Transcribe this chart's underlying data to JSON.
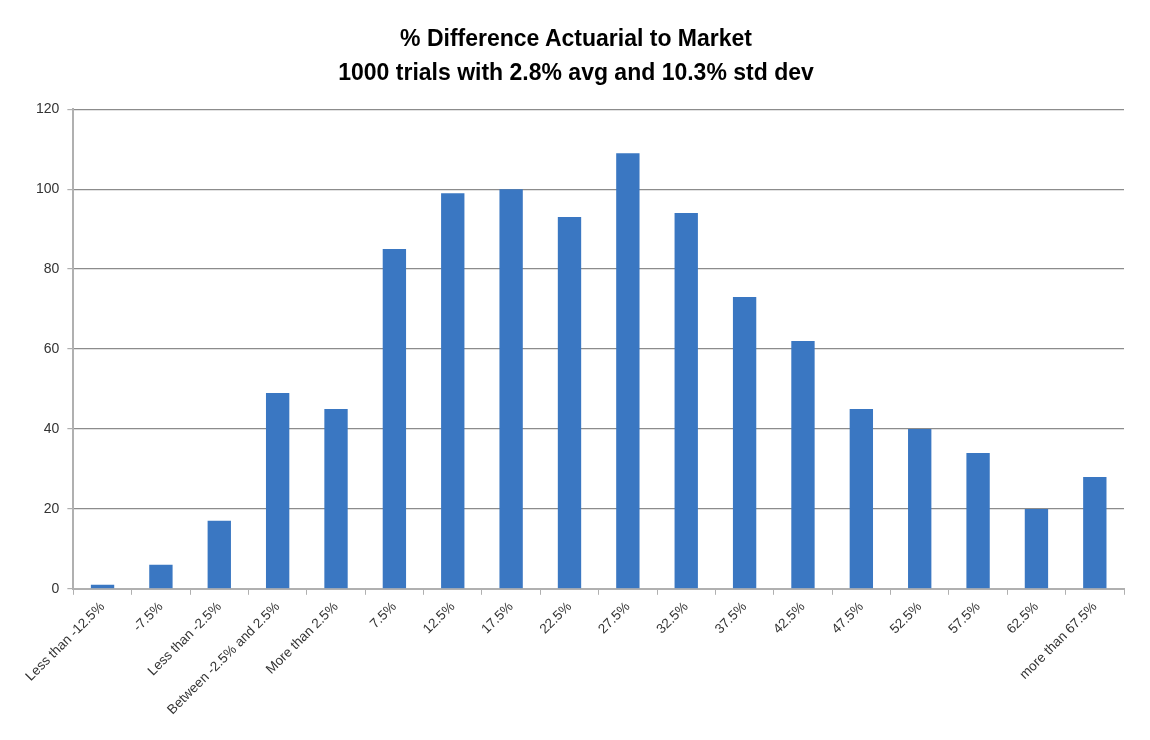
{
  "chart_data": {
    "type": "bar",
    "title": "% Difference Actuarial to Market",
    "subtitle": "1000 trials with 2.8% avg and 10.3% std dev",
    "categories": [
      "Less than -12.5%",
      "-7.5%",
      "Less than -2.5%",
      "Between -2.5% and 2.5%",
      "More than 2.5%",
      "7.5%",
      "12.5%",
      "17.5%",
      "22.5%",
      "27.5%",
      "32.5%",
      "37.5%",
      "42.5%",
      "47.5%",
      "52.5%",
      "57.5%",
      "62.5%",
      "more than 67.5%"
    ],
    "values": [
      1,
      6,
      17,
      49,
      45,
      85,
      99,
      100,
      93,
      109,
      94,
      73,
      62,
      45,
      40,
      34,
      20,
      28
    ],
    "color": "#3a77c2",
    "ylim": [
      0,
      120
    ],
    "yticks": [
      0,
      20,
      40,
      60,
      80,
      100,
      120
    ],
    "grid": "y",
    "legend": false
  }
}
